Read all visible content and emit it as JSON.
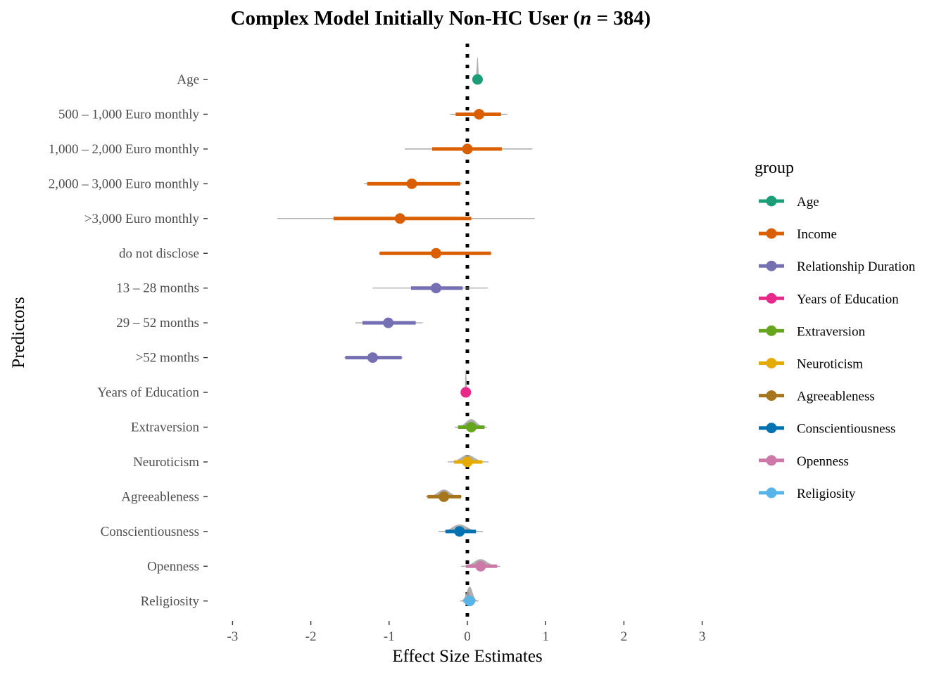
{
  "chart_data": {
    "type": "forest",
    "title_main": "Complex Model Initially Non-HC User (",
    "title_n": "n",
    "title_tail": " = 384)",
    "xlabel": "Effect Size Estimates",
    "ylabel": "Predictors",
    "xlim": [
      -3,
      3
    ],
    "xticks": [
      -3,
      -2,
      -1,
      0,
      1,
      2,
      3
    ],
    "reference_line": 0,
    "legend_title": "group",
    "groups": [
      {
        "name": "Age",
        "color": "#1b9e77"
      },
      {
        "name": "Income",
        "color": "#d95f02"
      },
      {
        "name": "Relationship Duration",
        "color": "#7570b3"
      },
      {
        "name": "Years of Education",
        "color": "#e7298a"
      },
      {
        "name": "Extraversion",
        "color": "#66a61e"
      },
      {
        "name": "Neuroticism",
        "color": "#e6ab02"
      },
      {
        "name": "Agreeableness",
        "color": "#a6761d"
      },
      {
        "name": "Conscientiousness",
        "color": "#0072b2"
      },
      {
        "name": "Openness",
        "color": "#cc79a7"
      },
      {
        "name": "Religiosity",
        "color": "#56b4e9"
      }
    ],
    "predictors": [
      {
        "label": "Age",
        "group": "Age",
        "est": 0.13,
        "inner": [
          0.11,
          0.15
        ],
        "outer": [
          0.1,
          0.16
        ],
        "dist": true
      },
      {
        "label": "500 – 1,000 Euro monthly",
        "group": "Income",
        "est": 0.15,
        "inner": [
          -0.15,
          0.43
        ],
        "outer": [
          -0.22,
          0.51
        ],
        "dist": false
      },
      {
        "label": "1,000 – 2,000 Euro monthly",
        "group": "Income",
        "est": 0.0,
        "inner": [
          -0.45,
          0.44
        ],
        "outer": [
          -0.8,
          0.83
        ],
        "dist": false
      },
      {
        "label": "2,000 – 3,000 Euro monthly",
        "group": "Income",
        "est": -0.71,
        "inner": [
          -1.28,
          -0.09
        ],
        "outer": [
          -1.32,
          -0.07
        ],
        "dist": false
      },
      {
        "label": ">3,000 Euro monthly",
        "group": "Income",
        "est": -0.86,
        "inner": [
          -1.71,
          0.05
        ],
        "outer": [
          -2.43,
          0.86
        ],
        "dist": false
      },
      {
        "label": "do not disclose",
        "group": "Income",
        "est": -0.4,
        "inner": [
          -1.12,
          0.3
        ],
        "outer": [
          -1.13,
          0.31
        ],
        "dist": false
      },
      {
        "label": "13 – 28 months",
        "group": "Relationship Duration",
        "est": -0.4,
        "inner": [
          -0.72,
          -0.06
        ],
        "outer": [
          -1.21,
          0.26
        ],
        "dist": false
      },
      {
        "label": "29 – 52 months",
        "group": "Relationship Duration",
        "est": -1.01,
        "inner": [
          -1.34,
          -0.66
        ],
        "outer": [
          -1.43,
          -0.57
        ],
        "dist": false
      },
      {
        "label": ">52 months",
        "group": "Relationship Duration",
        "est": -1.21,
        "inner": [
          -1.56,
          -0.84
        ],
        "outer": [
          -1.57,
          -0.83
        ],
        "dist": false
      },
      {
        "label": "Years of Education",
        "group": "Years of Education",
        "est": -0.02,
        "inner": [
          -0.03,
          0.0
        ],
        "outer": [
          -0.04,
          0.01
        ],
        "dist": true
      },
      {
        "label": "Extraversion",
        "group": "Extraversion",
        "est": 0.05,
        "inner": [
          -0.12,
          0.22
        ],
        "outer": [
          -0.16,
          0.25
        ],
        "dist": true
      },
      {
        "label": "Neuroticism",
        "group": "Neuroticism",
        "est": 0.0,
        "inner": [
          -0.17,
          0.19
        ],
        "outer": [
          -0.25,
          0.27
        ],
        "dist": true
      },
      {
        "label": "Agreeableness",
        "group": "Agreeableness",
        "est": -0.3,
        "inner": [
          -0.51,
          -0.08
        ],
        "outer": [
          -0.53,
          -0.07
        ],
        "dist": true
      },
      {
        "label": "Conscientiousness",
        "group": "Conscientiousness",
        "est": -0.1,
        "inner": [
          -0.28,
          0.11
        ],
        "outer": [
          -0.37,
          0.2
        ],
        "dist": true
      },
      {
        "label": "Openness",
        "group": "Openness",
        "est": 0.17,
        "inner": [
          -0.02,
          0.38
        ],
        "outer": [
          -0.08,
          0.42
        ],
        "dist": true
      },
      {
        "label": "Religiosity",
        "group": "Religiosity",
        "est": 0.03,
        "inner": [
          -0.05,
          0.1
        ],
        "outer": [
          -0.09,
          0.14
        ],
        "dist": true
      }
    ]
  }
}
